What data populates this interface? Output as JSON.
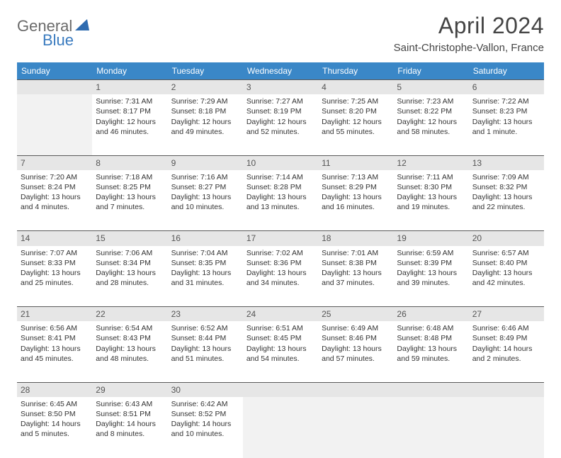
{
  "logo": {
    "general": "General",
    "blue": "Blue"
  },
  "title": "April 2024",
  "location": "Saint-Christophe-Vallon, France",
  "weekdays": [
    "Sunday",
    "Monday",
    "Tuesday",
    "Wednesday",
    "Thursday",
    "Friday",
    "Saturday"
  ],
  "colors": {
    "header_bg": "#3a87c7",
    "daynum_bg": "#e6e6e6",
    "empty_bg": "#f2f2f2",
    "border": "#5a5a5a"
  },
  "weeks": [
    {
      "nums": [
        "",
        "1",
        "2",
        "3",
        "4",
        "5",
        "6"
      ],
      "cells": [
        null,
        {
          "sr": "Sunrise: 7:31 AM",
          "ss": "Sunset: 8:17 PM",
          "d1": "Daylight: 12 hours",
          "d2": "and 46 minutes."
        },
        {
          "sr": "Sunrise: 7:29 AM",
          "ss": "Sunset: 8:18 PM",
          "d1": "Daylight: 12 hours",
          "d2": "and 49 minutes."
        },
        {
          "sr": "Sunrise: 7:27 AM",
          "ss": "Sunset: 8:19 PM",
          "d1": "Daylight: 12 hours",
          "d2": "and 52 minutes."
        },
        {
          "sr": "Sunrise: 7:25 AM",
          "ss": "Sunset: 8:20 PM",
          "d1": "Daylight: 12 hours",
          "d2": "and 55 minutes."
        },
        {
          "sr": "Sunrise: 7:23 AM",
          "ss": "Sunset: 8:22 PM",
          "d1": "Daylight: 12 hours",
          "d2": "and 58 minutes."
        },
        {
          "sr": "Sunrise: 7:22 AM",
          "ss": "Sunset: 8:23 PM",
          "d1": "Daylight: 13 hours",
          "d2": "and 1 minute."
        }
      ]
    },
    {
      "nums": [
        "7",
        "8",
        "9",
        "10",
        "11",
        "12",
        "13"
      ],
      "cells": [
        {
          "sr": "Sunrise: 7:20 AM",
          "ss": "Sunset: 8:24 PM",
          "d1": "Daylight: 13 hours",
          "d2": "and 4 minutes."
        },
        {
          "sr": "Sunrise: 7:18 AM",
          "ss": "Sunset: 8:25 PM",
          "d1": "Daylight: 13 hours",
          "d2": "and 7 minutes."
        },
        {
          "sr": "Sunrise: 7:16 AM",
          "ss": "Sunset: 8:27 PM",
          "d1": "Daylight: 13 hours",
          "d2": "and 10 minutes."
        },
        {
          "sr": "Sunrise: 7:14 AM",
          "ss": "Sunset: 8:28 PM",
          "d1": "Daylight: 13 hours",
          "d2": "and 13 minutes."
        },
        {
          "sr": "Sunrise: 7:13 AM",
          "ss": "Sunset: 8:29 PM",
          "d1": "Daylight: 13 hours",
          "d2": "and 16 minutes."
        },
        {
          "sr": "Sunrise: 7:11 AM",
          "ss": "Sunset: 8:30 PM",
          "d1": "Daylight: 13 hours",
          "d2": "and 19 minutes."
        },
        {
          "sr": "Sunrise: 7:09 AM",
          "ss": "Sunset: 8:32 PM",
          "d1": "Daylight: 13 hours",
          "d2": "and 22 minutes."
        }
      ]
    },
    {
      "nums": [
        "14",
        "15",
        "16",
        "17",
        "18",
        "19",
        "20"
      ],
      "cells": [
        {
          "sr": "Sunrise: 7:07 AM",
          "ss": "Sunset: 8:33 PM",
          "d1": "Daylight: 13 hours",
          "d2": "and 25 minutes."
        },
        {
          "sr": "Sunrise: 7:06 AM",
          "ss": "Sunset: 8:34 PM",
          "d1": "Daylight: 13 hours",
          "d2": "and 28 minutes."
        },
        {
          "sr": "Sunrise: 7:04 AM",
          "ss": "Sunset: 8:35 PM",
          "d1": "Daylight: 13 hours",
          "d2": "and 31 minutes."
        },
        {
          "sr": "Sunrise: 7:02 AM",
          "ss": "Sunset: 8:36 PM",
          "d1": "Daylight: 13 hours",
          "d2": "and 34 minutes."
        },
        {
          "sr": "Sunrise: 7:01 AM",
          "ss": "Sunset: 8:38 PM",
          "d1": "Daylight: 13 hours",
          "d2": "and 37 minutes."
        },
        {
          "sr": "Sunrise: 6:59 AM",
          "ss": "Sunset: 8:39 PM",
          "d1": "Daylight: 13 hours",
          "d2": "and 39 minutes."
        },
        {
          "sr": "Sunrise: 6:57 AM",
          "ss": "Sunset: 8:40 PM",
          "d1": "Daylight: 13 hours",
          "d2": "and 42 minutes."
        }
      ]
    },
    {
      "nums": [
        "21",
        "22",
        "23",
        "24",
        "25",
        "26",
        "27"
      ],
      "cells": [
        {
          "sr": "Sunrise: 6:56 AM",
          "ss": "Sunset: 8:41 PM",
          "d1": "Daylight: 13 hours",
          "d2": "and 45 minutes."
        },
        {
          "sr": "Sunrise: 6:54 AM",
          "ss": "Sunset: 8:43 PM",
          "d1": "Daylight: 13 hours",
          "d2": "and 48 minutes."
        },
        {
          "sr": "Sunrise: 6:52 AM",
          "ss": "Sunset: 8:44 PM",
          "d1": "Daylight: 13 hours",
          "d2": "and 51 minutes."
        },
        {
          "sr": "Sunrise: 6:51 AM",
          "ss": "Sunset: 8:45 PM",
          "d1": "Daylight: 13 hours",
          "d2": "and 54 minutes."
        },
        {
          "sr": "Sunrise: 6:49 AM",
          "ss": "Sunset: 8:46 PM",
          "d1": "Daylight: 13 hours",
          "d2": "and 57 minutes."
        },
        {
          "sr": "Sunrise: 6:48 AM",
          "ss": "Sunset: 8:48 PM",
          "d1": "Daylight: 13 hours",
          "d2": "and 59 minutes."
        },
        {
          "sr": "Sunrise: 6:46 AM",
          "ss": "Sunset: 8:49 PM",
          "d1": "Daylight: 14 hours",
          "d2": "and 2 minutes."
        }
      ]
    },
    {
      "nums": [
        "28",
        "29",
        "30",
        "",
        "",
        "",
        ""
      ],
      "cells": [
        {
          "sr": "Sunrise: 6:45 AM",
          "ss": "Sunset: 8:50 PM",
          "d1": "Daylight: 14 hours",
          "d2": "and 5 minutes."
        },
        {
          "sr": "Sunrise: 6:43 AM",
          "ss": "Sunset: 8:51 PM",
          "d1": "Daylight: 14 hours",
          "d2": "and 8 minutes."
        },
        {
          "sr": "Sunrise: 6:42 AM",
          "ss": "Sunset: 8:52 PM",
          "d1": "Daylight: 14 hours",
          "d2": "and 10 minutes."
        },
        null,
        null,
        null,
        null
      ]
    }
  ]
}
